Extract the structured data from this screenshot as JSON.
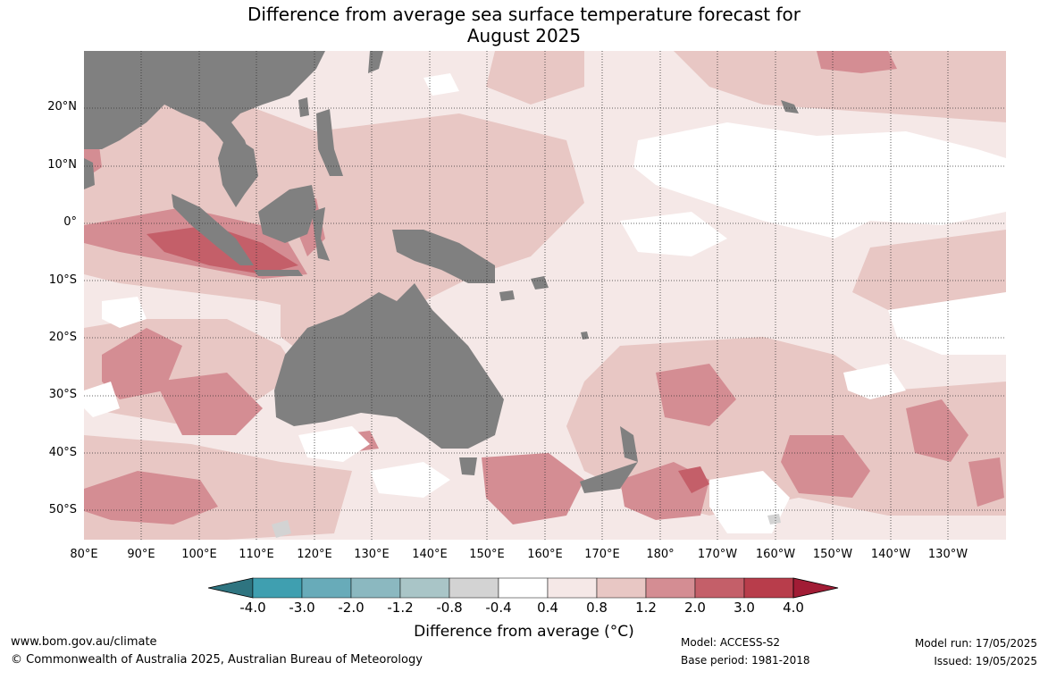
{
  "title_line1": "Difference from average sea surface temperature forecast for",
  "title_line2": "August 2025",
  "lat_labels": [
    "20°N",
    "10°N",
    "0°",
    "10°S",
    "20°S",
    "30°S",
    "40°S",
    "50°S"
  ],
  "lon_labels": [
    "80°E",
    "90°E",
    "100°E",
    "110°E",
    "120°E",
    "130°E",
    "140°E",
    "150°E",
    "160°E",
    "170°E",
    "180°",
    "170°W",
    "160°W",
    "150°W",
    "140°W",
    "130°W"
  ],
  "colorbar": {
    "ticks": [
      "-4.0",
      "-3.0",
      "-2.0",
      "-1.2",
      "-0.8",
      "-0.4",
      "0.4",
      "0.8",
      "1.2",
      "2.0",
      "3.0",
      "4.0"
    ],
    "colors": [
      "#2e7480",
      "#3f9fb0",
      "#68abb9",
      "#8bb8c0",
      "#a9c5c7",
      "#d3d3d3",
      "#ffffff",
      "#f5e8e7",
      "#e8c7c4",
      "#d48d93",
      "#c45f69",
      "#b83d4b",
      "#a11c35"
    ],
    "label": "Difference from average (°C)"
  },
  "footer": {
    "website": "www.bom.gov.au/climate",
    "copyright": "© Commonwealth of Australia 2025, Australian Bureau of Meteorology",
    "model": "Model: ACCESS-S2",
    "base_period": "Base period: 1981-2018",
    "model_run": "Model run: 17/05/2025",
    "issued": "Issued: 19/05/2025"
  },
  "map_colors": {
    "land": "#808080",
    "band_0_4_0_8": "#f5e8e7",
    "band_0_8_1_2": "#e8c7c4",
    "band_1_2_2_0": "#d48d93",
    "band_2_0_3_0": "#c45f69",
    "neutral": "#ffffff",
    "cool": "#d3d3d3"
  }
}
